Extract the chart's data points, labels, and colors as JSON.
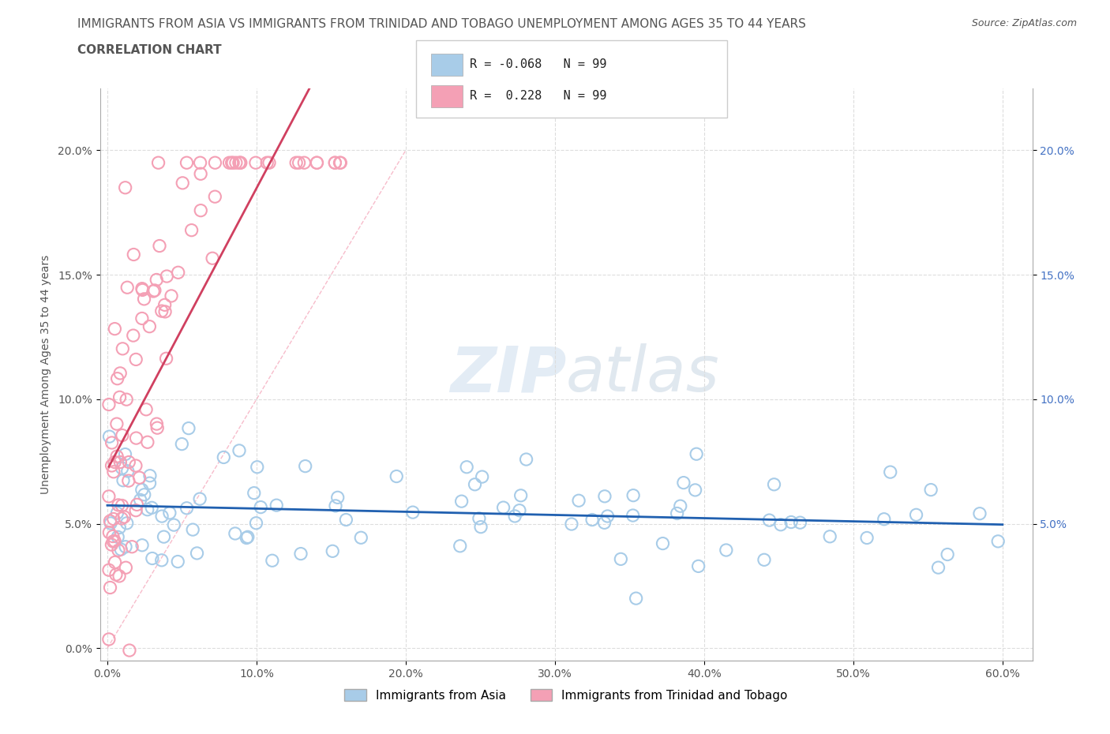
{
  "title_line1": "IMMIGRANTS FROM ASIA VS IMMIGRANTS FROM TRINIDAD AND TOBAGO UNEMPLOYMENT AMONG AGES 35 TO 44 YEARS",
  "title_line2": "CORRELATION CHART",
  "source_text": "Source: ZipAtlas.com",
  "ylabel": "Unemployment Among Ages 35 to 44 years",
  "xlim": [
    -0.005,
    0.62
  ],
  "ylim": [
    -0.005,
    0.225
  ],
  "xtick_vals": [
    0.0,
    0.1,
    0.2,
    0.3,
    0.4,
    0.5,
    0.6
  ],
  "xticklabels": [
    "0.0%",
    "10.0%",
    "20.0%",
    "30.0%",
    "40.0%",
    "50.0%",
    "60.0%"
  ],
  "ytick_vals": [
    0.0,
    0.05,
    0.1,
    0.15,
    0.2
  ],
  "yticklabels": [
    "0.0%",
    "5.0%",
    "10.0%",
    "15.0%",
    "20.0%"
  ],
  "right_ytick_vals": [
    0.05,
    0.1,
    0.15,
    0.2
  ],
  "right_yticklabels": [
    "5.0%",
    "10.0%",
    "15.0%",
    "20.0%"
  ],
  "color_asia": "#A8CCE8",
  "color_tt": "#F4A0B5",
  "trendline_asia_color": "#2060B0",
  "trendline_tt_color": "#D04060",
  "ref_line_color": "#F4A0B5",
  "R_asia": -0.068,
  "N_asia": 99,
  "R_tt": 0.228,
  "N_tt": 99,
  "watermark_zip": "ZIP",
  "watermark_atlas": "atlas",
  "background_color": "#FFFFFF",
  "legend_label_asia": "Immigrants from Asia",
  "legend_label_tt": "Immigrants from Trinidad and Tobago",
  "grid_color": "#DDDDDD",
  "axis_color": "#AAAAAA",
  "text_color": "#555555",
  "right_axis_color": "#4472C4",
  "title_fontsize": 11,
  "tick_fontsize": 10,
  "legend_fontsize": 11
}
